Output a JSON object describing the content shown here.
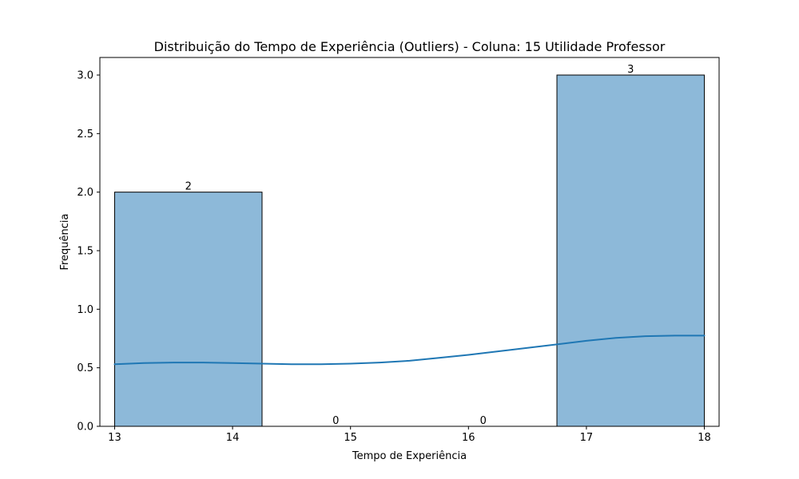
{
  "chart_data": {
    "type": "bar",
    "subtype": "histogram-with-kde",
    "title": "Distribuição do Tempo de Experiência (Outliers) - Coluna: 15 Utilidade Professor",
    "xlabel": "Tempo de Experiência",
    "ylabel": "Frequência",
    "xlim": [
      12.875,
      18.125
    ],
    "ylim": [
      0,
      3.15
    ],
    "xticks": [
      13,
      14,
      15,
      16,
      17,
      18
    ],
    "xtick_labels": [
      "13",
      "14",
      "15",
      "16",
      "17",
      "18"
    ],
    "yticks": [
      0,
      0.5,
      1.0,
      1.5,
      2.0,
      2.5,
      3.0
    ],
    "ytick_labels": [
      "0.0",
      "0.5",
      "1.0",
      "1.5",
      "2.0",
      "2.5",
      "3.0"
    ],
    "bins": [
      {
        "start": 13.0,
        "end": 14.25,
        "value": 2,
        "label": "2"
      },
      {
        "start": 14.25,
        "end": 15.5,
        "value": 0,
        "label": "0"
      },
      {
        "start": 15.5,
        "end": 16.75,
        "value": 0,
        "label": "0"
      },
      {
        "start": 16.75,
        "end": 18.0,
        "value": 3,
        "label": "3"
      }
    ],
    "kde": {
      "x": [
        13.0,
        13.25,
        13.5,
        13.75,
        14.0,
        14.25,
        14.5,
        14.75,
        15.0,
        15.25,
        15.5,
        15.75,
        16.0,
        16.25,
        16.5,
        16.75,
        17.0,
        17.25,
        17.5,
        17.75,
        18.0
      ],
      "y": [
        0.53,
        0.54,
        0.545,
        0.545,
        0.54,
        0.535,
        0.53,
        0.53,
        0.535,
        0.545,
        0.56,
        0.585,
        0.61,
        0.64,
        0.67,
        0.7,
        0.73,
        0.755,
        0.77,
        0.775,
        0.775
      ]
    },
    "bar_color": "#8db9d9",
    "bar_edge_color": "#000000",
    "line_color": "#1f77b4",
    "grid": false,
    "legend": false
  }
}
